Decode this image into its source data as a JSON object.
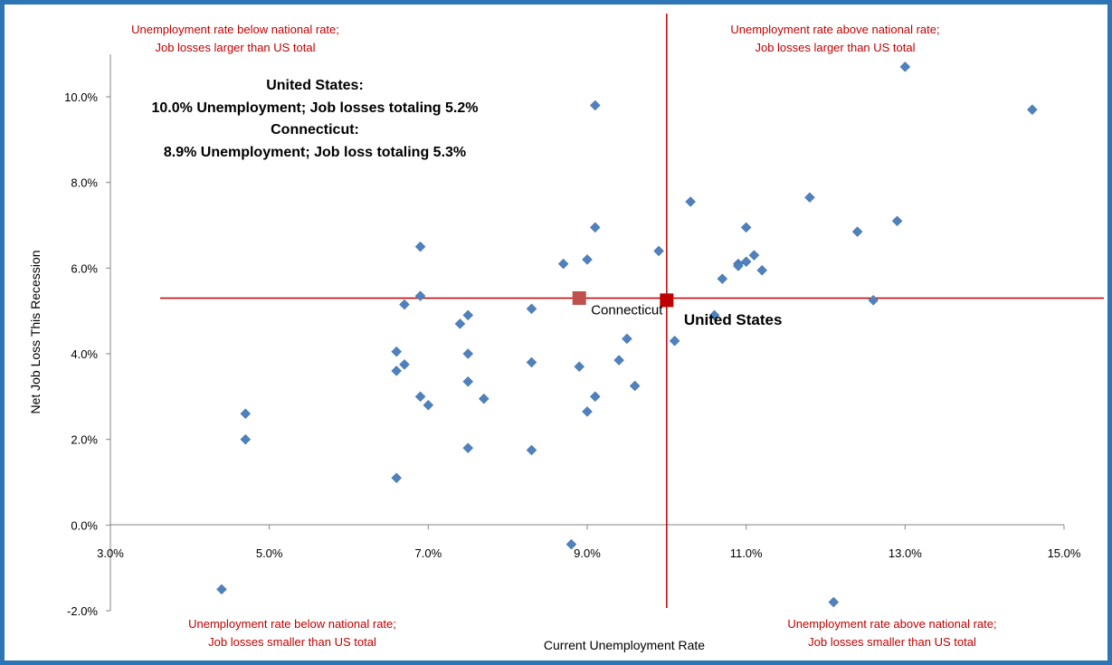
{
  "chart_data": {
    "type": "scatter",
    "xlabel": "Current Unemployment Rate",
    "ylabel": "Net Job Loss This Recession",
    "xlim": [
      3.0,
      15.0
    ],
    "ylim": [
      -2.0,
      10.0
    ],
    "x_ticks": [
      "3.0%",
      "5.0%",
      "7.0%",
      "9.0%",
      "11.0%",
      "13.0%",
      "15.0%"
    ],
    "y_ticks": [
      "-2.0%",
      "0.0%",
      "2.0%",
      "4.0%",
      "6.0%",
      "8.0%",
      "10.0%"
    ],
    "grid": false,
    "series": [
      {
        "marker": "diamond",
        "color": "#4f81bd",
        "points": [
          [
            4.4,
            -1.5
          ],
          [
            4.7,
            2.6
          ],
          [
            4.7,
            2.0
          ],
          [
            6.6,
            4.05
          ],
          [
            6.6,
            3.6
          ],
          [
            6.6,
            1.1
          ],
          [
            6.7,
            5.15
          ],
          [
            6.7,
            3.75
          ],
          [
            6.9,
            6.5
          ],
          [
            6.9,
            5.35
          ],
          [
            6.9,
            3.0
          ],
          [
            7.0,
            2.8
          ],
          [
            7.4,
            4.7
          ],
          [
            7.5,
            4.9
          ],
          [
            7.5,
            4.0
          ],
          [
            7.5,
            3.35
          ],
          [
            7.5,
            1.8
          ],
          [
            7.7,
            2.95
          ],
          [
            8.3,
            5.05
          ],
          [
            8.3,
            3.8
          ],
          [
            8.3,
            1.75
          ],
          [
            8.7,
            6.1
          ],
          [
            8.8,
            -0.45
          ],
          [
            8.9,
            3.7
          ],
          [
            9.0,
            6.2
          ],
          [
            9.0,
            2.65
          ],
          [
            9.1,
            9.8
          ],
          [
            9.1,
            6.95
          ],
          [
            9.1,
            3.0
          ],
          [
            9.4,
            3.85
          ],
          [
            9.5,
            4.35
          ],
          [
            9.6,
            3.25
          ],
          [
            9.9,
            6.4
          ],
          [
            10.1,
            4.3
          ],
          [
            10.3,
            7.55
          ],
          [
            10.6,
            4.9
          ],
          [
            10.7,
            5.75
          ],
          [
            10.9,
            6.1
          ],
          [
            10.9,
            6.05
          ],
          [
            11.0,
            6.95
          ],
          [
            11.0,
            6.15
          ],
          [
            11.1,
            6.3
          ],
          [
            11.2,
            5.95
          ],
          [
            11.8,
            7.65
          ],
          [
            12.1,
            -1.8
          ],
          [
            12.4,
            6.85
          ],
          [
            12.6,
            5.25
          ],
          [
            12.9,
            7.1
          ],
          [
            13.0,
            10.7
          ],
          [
            14.6,
            9.7
          ]
        ]
      },
      {
        "name": "Connecticut",
        "marker": "square",
        "color": "#c0504d",
        "points": [
          [
            8.9,
            5.3
          ]
        ]
      },
      {
        "name": "United States",
        "marker": "square",
        "color": "#c00000",
        "points": [
          [
            10.0,
            5.25
          ]
        ]
      }
    ],
    "reference_lines": {
      "color": "#c00000",
      "vertical_x": 10.0,
      "horizontal_y": 5.3
    },
    "annotations": {
      "top_left": [
        "Unemployment rate below national rate;",
        "Job losses larger than US total"
      ],
      "top_right": [
        "Unemployment rate above national rate;",
        "Job losses larger than US total"
      ],
      "bottom_left": [
        "Unemployment rate below national rate;",
        "Job losses smaller than US total"
      ],
      "bottom_right": [
        "Unemployment rate above national rate;",
        "Job losses smaller than US total"
      ]
    },
    "info_box": [
      "United States:",
      "10.0% Unemployment; Job losses totaling 5.2%",
      "Connecticut:",
      "8.9% Unemployment; Job loss totaling 5.3%"
    ]
  }
}
